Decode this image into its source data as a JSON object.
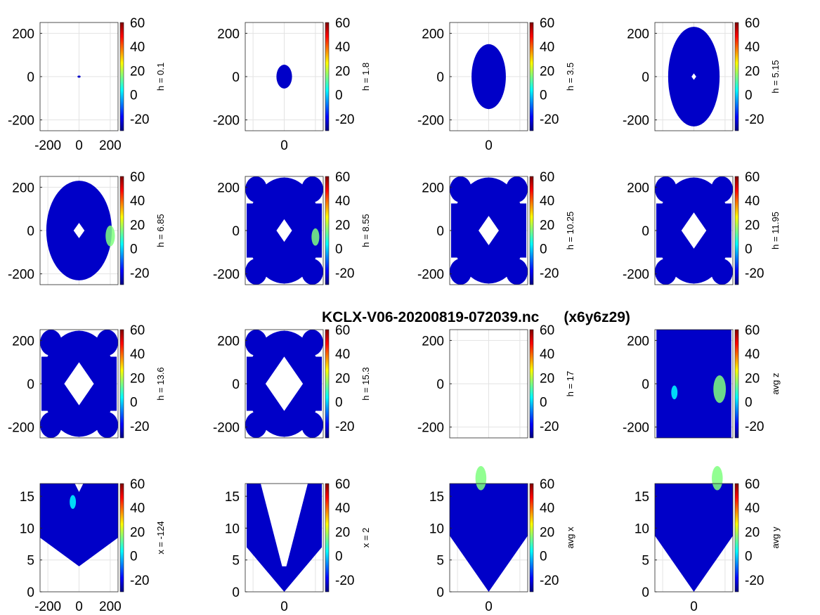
{
  "figure": {
    "title": "KCLX-V06-20200819-072039.nc      (x6y6z29)",
    "colormap": [
      "#00007f",
      "#0000ff",
      "#007fff",
      "#00ffff",
      "#7fff7f",
      "#ffff00",
      "#ff7f00",
      "#ff0000",
      "#7f0000"
    ],
    "colorbar": {
      "range": [
        -30,
        60
      ],
      "ticks": [
        "60",
        "40",
        "20",
        "0",
        "-20"
      ]
    }
  },
  "chart_data": [
    {
      "type": "heatmap",
      "panel_label": "h = 0.1",
      "ylim": [
        -250,
        250
      ],
      "yticks": [
        "200",
        "0",
        "-200"
      ],
      "xticks": [
        "-200",
        "0",
        "200"
      ],
      "grid": true,
      "footprint": {
        "kind": "ellipse",
        "rx": 0.02,
        "ry": 0.01,
        "hole": 0
      },
      "hotspots": []
    },
    {
      "type": "heatmap",
      "panel_label": "h = 1.8",
      "ylim": [
        -250,
        250
      ],
      "yticks": [
        "200",
        "0",
        "-200"
      ],
      "xticks": [
        "0"
      ],
      "grid": true,
      "footprint": {
        "kind": "ellipse",
        "rx": 0.1,
        "ry": 0.11,
        "hole": 0
      },
      "hotspots": []
    },
    {
      "type": "heatmap",
      "panel_label": "h = 3.5",
      "ylim": [
        -250,
        250
      ],
      "yticks": [
        "200",
        "0",
        "-200"
      ],
      "xticks": [
        "0"
      ],
      "grid": true,
      "footprint": {
        "kind": "ellipse",
        "rx": 0.22,
        "ry": 0.3,
        "hole": 0
      },
      "hotspots": []
    },
    {
      "type": "heatmap",
      "panel_label": "h = 5.15",
      "ylim": [
        -250,
        250
      ],
      "yticks": [
        "200",
        "0",
        "-200"
      ],
      "xticks": [],
      "grid": true,
      "footprint": {
        "kind": "ellipse",
        "rx": 0.33,
        "ry": 0.46,
        "hole": 0.03
      },
      "hotspots": []
    },
    {
      "type": "heatmap",
      "panel_label": "h = 6.85",
      "ylim": [
        -250,
        250
      ],
      "yticks": [
        "200",
        "0",
        "-200"
      ],
      "xticks": [],
      "grid": true,
      "footprint": {
        "kind": "ellipse",
        "rx": 0.42,
        "ry": 0.46,
        "hole": 0.07
      },
      "hotspots": [
        {
          "x": 0.4,
          "y": -0.05,
          "r": 0.06,
          "color": "#7fff7f"
        }
      ]
    },
    {
      "type": "heatmap",
      "panel_label": "h = 8.55",
      "ylim": [
        -250,
        250
      ],
      "yticks": [
        "200",
        "0",
        "-200"
      ],
      "xticks": [],
      "grid": true,
      "footprint": {
        "kind": "rings",
        "hole": 0.1
      },
      "hotspots": [
        {
          "x": 0.4,
          "y": -0.06,
          "r": 0.05,
          "color": "#7fff7f"
        }
      ]
    },
    {
      "type": "heatmap",
      "panel_label": "h = 10.25",
      "ylim": [
        -250,
        250
      ],
      "yticks": [
        "200",
        "0",
        "-200"
      ],
      "xticks": [],
      "grid": true,
      "footprint": {
        "kind": "rings",
        "hole": 0.13
      },
      "hotspots": []
    },
    {
      "type": "heatmap",
      "panel_label": "h = 11.95",
      "ylim": [
        -250,
        250
      ],
      "yticks": [
        "200",
        "0",
        "-200"
      ],
      "xticks": [],
      "grid": true,
      "footprint": {
        "kind": "rings",
        "hole": 0.16
      },
      "hotspots": []
    },
    {
      "type": "heatmap",
      "panel_label": "h = 13.6",
      "ylim": [
        -250,
        250
      ],
      "yticks": [
        "200",
        "0",
        "-200"
      ],
      "xticks": [],
      "grid": true,
      "footprint": {
        "kind": "rings",
        "hole": 0.19
      },
      "hotspots": []
    },
    {
      "type": "heatmap",
      "panel_label": "h = 15.3",
      "ylim": [
        -250,
        250
      ],
      "yticks": [
        "200",
        "0",
        "-200"
      ],
      "xticks": [],
      "grid": true,
      "footprint": {
        "kind": "rings",
        "hole": 0.24
      },
      "hotspots": []
    },
    {
      "type": "heatmap",
      "panel_label": "h = 17",
      "ylim": [
        -250,
        250
      ],
      "yticks": [
        "200",
        "0",
        "-200"
      ],
      "xticks": [],
      "grid": true,
      "footprint": {
        "kind": "none"
      },
      "hotspots": []
    },
    {
      "type": "heatmap",
      "panel_label": "avg z",
      "ylim": [
        -250,
        250
      ],
      "yticks": [
        "200",
        "0",
        "-200"
      ],
      "xticks": [],
      "grid": true,
      "footprint": {
        "kind": "rect"
      },
      "hotspots": [
        {
          "x": 0.33,
          "y": -0.05,
          "r": 0.08,
          "color": "#7fff7f"
        },
        {
          "x": -0.25,
          "y": -0.08,
          "r": 0.04,
          "color": "#00ffff"
        }
      ]
    },
    {
      "type": "heatmap",
      "panel_label": "x = -124",
      "ylim": [
        0,
        17
      ],
      "yticks": [
        "15",
        "10",
        "5",
        "0"
      ],
      "xticks": [
        "-200",
        "0",
        "200"
      ],
      "grid": true,
      "footprint": {
        "kind": "heart"
      },
      "hotspots": [
        {
          "x": -0.08,
          "y": 0.33,
          "r": 0.04,
          "color": "#00ffff"
        }
      ]
    },
    {
      "type": "heatmap",
      "panel_label": "x = 2",
      "ylim": [
        0,
        17
      ],
      "yticks": [
        "15",
        "10",
        "5",
        "0"
      ],
      "xticks": [
        "0"
      ],
      "grid": true,
      "footprint": {
        "kind": "vwedge"
      },
      "hotspots": []
    },
    {
      "type": "heatmap",
      "panel_label": "avg x",
      "ylim": [
        0,
        17
      ],
      "yticks": [
        "15",
        "10",
        "5",
        "0"
      ],
      "xticks": [
        "0"
      ],
      "grid": true,
      "footprint": {
        "kind": "cone"
      },
      "hotspots": [
        {
          "x": -0.1,
          "y": 0.55,
          "r": 0.07,
          "color": "#7fff7f"
        }
      ]
    },
    {
      "type": "heatmap",
      "panel_label": "avg y",
      "ylim": [
        0,
        17
      ],
      "yticks": [
        "15",
        "10",
        "5",
        "0"
      ],
      "xticks": [
        "0"
      ],
      "grid": true,
      "footprint": {
        "kind": "cone"
      },
      "hotspots": [
        {
          "x": 0.3,
          "y": 0.55,
          "r": 0.07,
          "color": "#7fff7f"
        }
      ]
    }
  ]
}
